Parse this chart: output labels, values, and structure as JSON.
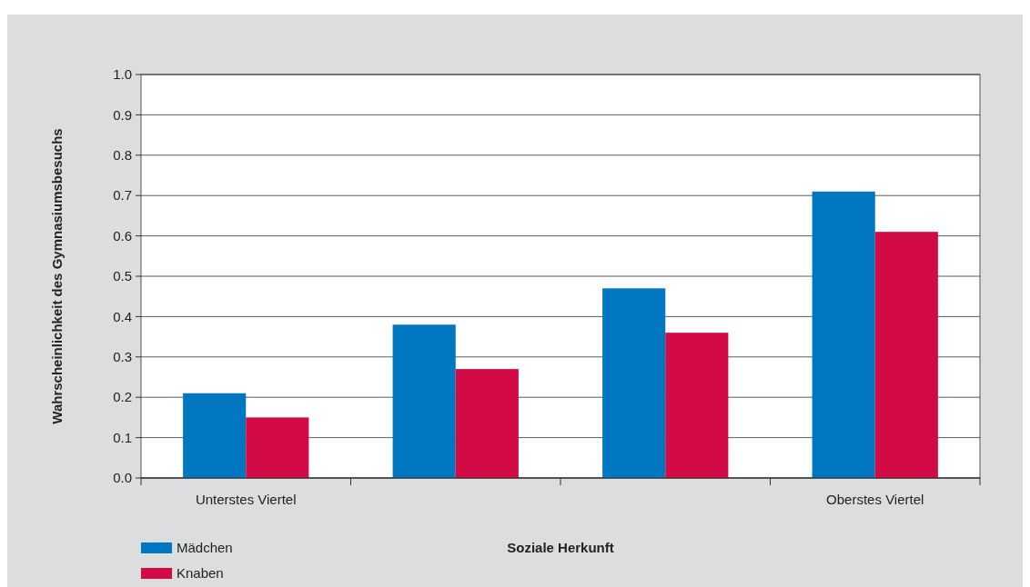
{
  "chart_data": {
    "type": "bar",
    "xlabel": "Soziale Herkunft",
    "ylabel": "Wahrscheinlichkeit des Gymnasiumsbesuchs",
    "categories": [
      "Unterstes Viertel",
      null,
      null,
      "Oberstes Viertel"
    ],
    "series": [
      {
        "name": "Mädchen",
        "color": "#0077c0",
        "values": [
          0.21,
          0.38,
          0.47,
          0.71
        ]
      },
      {
        "name": "Knaben",
        "color": "#d20a46",
        "values": [
          0.15,
          0.27,
          0.36,
          0.61
        ]
      }
    ],
    "ylim": [
      0,
      1
    ],
    "yticks": [
      {
        "value": 0,
        "label": "0.0"
      },
      {
        "value": 0.1,
        "label": "0.1"
      },
      {
        "value": 0.2,
        "label": "0.2"
      },
      {
        "value": 0.3,
        "label": "0.3"
      },
      {
        "value": 0.4,
        "label": "0.4"
      },
      {
        "value": 0.5,
        "label": "0.5"
      },
      {
        "value": 0.6,
        "label": "0.6"
      },
      {
        "value": 0.7,
        "label": "0.7"
      },
      {
        "value": 0.8,
        "label": "0.8"
      },
      {
        "value": 0.9,
        "label": "0.9"
      },
      {
        "value": 1,
        "label": "1.0"
      }
    ],
    "grid": "y",
    "legend": "bottom left"
  }
}
